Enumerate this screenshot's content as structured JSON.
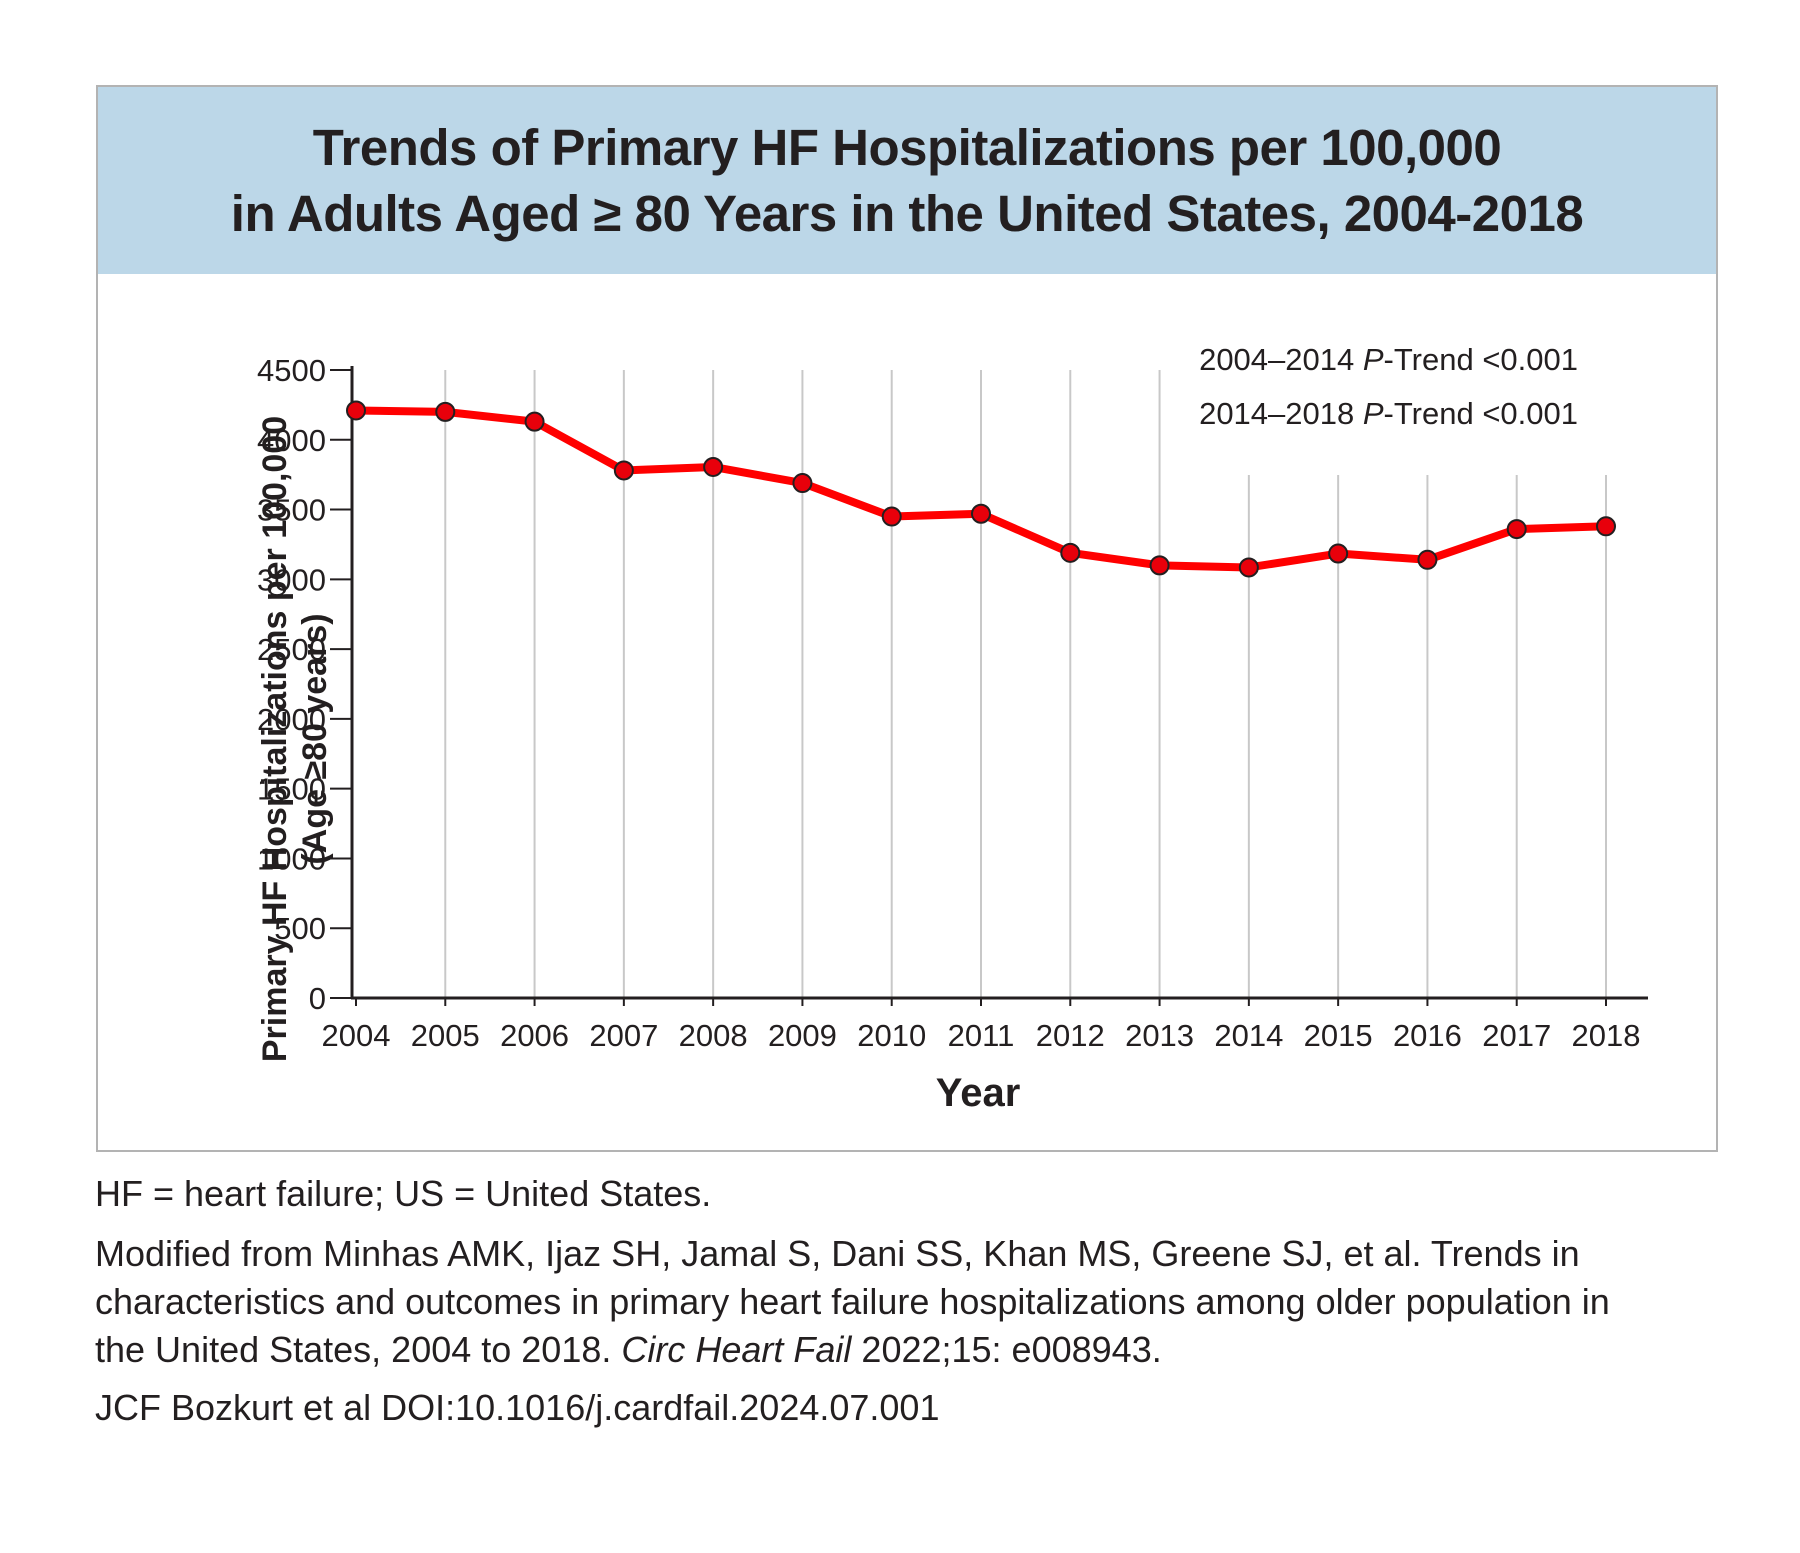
{
  "figure": {
    "title_line1": "Trends of Primary HF Hospitalizations per 100,000",
    "title_line2": "in Adults Aged ≥ 80 Years in the United States, 2004-2018",
    "annotation_line1": {
      "prefix": "2004–2014 ",
      "p": "P",
      "suffix": "-Trend <0.001"
    },
    "annotation_line2": {
      "prefix": "2014–2018 ",
      "p": "P",
      "suffix": "-Trend <0.001"
    },
    "background_color": "#bcd7e8",
    "line_color": "#ff0000",
    "marker_color": "#e8000b"
  },
  "chart_data": {
    "type": "line",
    "title": "Trends of Primary HF Hospitalizations per 100,000 in Adults Aged ≥ 80 Years in the United States, 2004-2018",
    "xlabel": "Year",
    "ylabel_line1": "Primary HF Hospitalizations per 100,000",
    "ylabel_line2": "(Age ≥80 years)",
    "categories": [
      "2004",
      "2005",
      "2006",
      "2007",
      "2008",
      "2009",
      "2010",
      "2011",
      "2012",
      "2013",
      "2014",
      "2015",
      "2016",
      "2017",
      "2018"
    ],
    "values": [
      4210,
      4200,
      4130,
      3780,
      3805,
      3690,
      3450,
      3470,
      3190,
      3100,
      3085,
      3185,
      3140,
      3360,
      3380
    ],
    "yticks": [
      0,
      500,
      1000,
      1500,
      2000,
      2500,
      3000,
      3500,
      4000,
      4500
    ],
    "ylim": [
      0,
      4500
    ],
    "grid": "vertical"
  },
  "footnotes": {
    "abbreviations": "HF = heart failure; US = United States.",
    "source_line1": "Modified from Minhas AMK, Ijaz SH, Jamal S, Dani SS, Khan MS, Greene SJ, et al. Trends in",
    "source_line2": "characteristics and outcomes in primary heart failure hospitalizations among older population in",
    "source_line3_start": "the United States, 2004 to 2018. ",
    "source_line3_journal": "Circ Heart Fail",
    "source_line3_end": " 2022;15: e008943.",
    "credit": "JCF Bozkurt et al  DOI:10.1016/j.cardfail.2024.07.001"
  }
}
